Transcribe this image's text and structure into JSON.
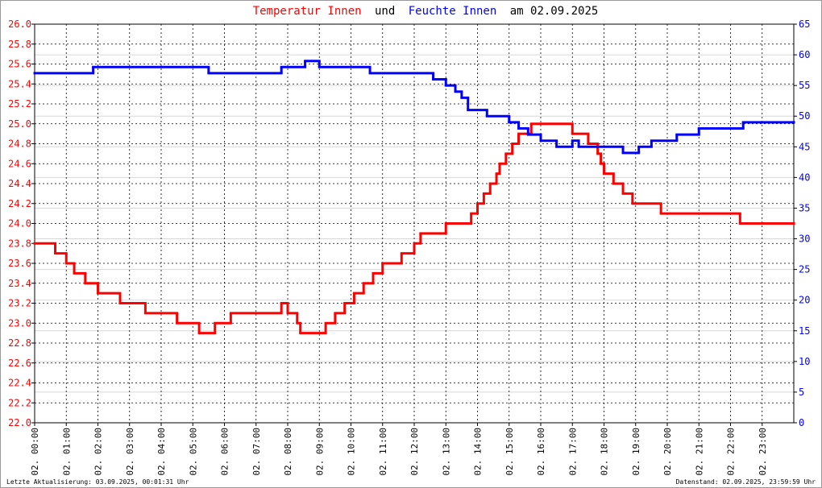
{
  "chart_data": {
    "type": "step",
    "title_parts": [
      "Temperatur Innen",
      "und",
      "Feuchte Innen",
      "am 02.09.2025"
    ],
    "xlim": [
      0,
      24
    ],
    "xticks": [
      {
        "value": 0,
        "label": "02. 00:00"
      },
      {
        "value": 1,
        "label": "02. 01:00"
      },
      {
        "value": 2,
        "label": "02. 02:00"
      },
      {
        "value": 3,
        "label": "02. 03:00"
      },
      {
        "value": 4,
        "label": "02. 04:00"
      },
      {
        "value": 5,
        "label": "02. 05:00"
      },
      {
        "value": 6,
        "label": "02. 06:00"
      },
      {
        "value": 7,
        "label": "02. 07:00"
      },
      {
        "value": 8,
        "label": "02. 08:00"
      },
      {
        "value": 9,
        "label": "02. 09:00"
      },
      {
        "value": 10,
        "label": "02. 10:00"
      },
      {
        "value": 11,
        "label": "02. 11:00"
      },
      {
        "value": 12,
        "label": "02. 12:00"
      },
      {
        "value": 13,
        "label": "02. 13:00"
      },
      {
        "value": 14,
        "label": "02. 14:00"
      },
      {
        "value": 15,
        "label": "02. 15:00"
      },
      {
        "value": 16,
        "label": "02. 16:00"
      },
      {
        "value": 17,
        "label": "02. 17:00"
      },
      {
        "value": 18,
        "label": "02. 18:00"
      },
      {
        "value": 19,
        "label": "02. 19:00"
      },
      {
        "value": 20,
        "label": "02. 20:00"
      },
      {
        "value": 21,
        "label": "02. 21:00"
      },
      {
        "value": 22,
        "label": "02. 22:00"
      },
      {
        "value": 23,
        "label": "02. 23:00"
      }
    ],
    "ylim": [
      22,
      26
    ],
    "yticks": [
      {
        "value": 22,
        "label": "22.0"
      },
      22.2,
      22.4,
      22.6,
      22.8,
      {
        "value": 23,
        "label": "23.0"
      },
      23.2,
      23.4,
      23.6,
      23.8,
      {
        "value": 24,
        "label": "24.0"
      },
      24.2,
      24.4,
      24.6,
      24.8,
      {
        "value": 25,
        "label": "25.0"
      },
      25.2,
      25.4,
      25.6,
      25.8,
      {
        "value": 26,
        "label": "26.0"
      }
    ],
    "y2lim": [
      0,
      65
    ],
    "y2ticks": [
      0,
      5,
      10,
      15,
      20,
      25,
      30,
      35,
      40,
      45,
      50,
      55,
      60,
      65
    ],
    "grid": true,
    "y2grid": true,
    "series": [
      {
        "name": "Temperatur Innen",
        "color": "#ff0000",
        "x": [
          0,
          0.65,
          1.0,
          1.25,
          1.6,
          2.0,
          2.7,
          3.5,
          4.5,
          5.2,
          5.7,
          6.2,
          7.8,
          8.0,
          8.3,
          8.4,
          9.2,
          9.5,
          9.8,
          10.1,
          10.4,
          10.7,
          11.0,
          11.6,
          12.0,
          12.2,
          13.0,
          13.8,
          14.0,
          14.2,
          14.4,
          14.6,
          14.7,
          14.9,
          15.1,
          15.3,
          15.7,
          17.0,
          17.5,
          17.8,
          17.9,
          18.0,
          18.3,
          18.6,
          18.9,
          19.8,
          22.3,
          24
        ],
        "values": [
          23.8,
          23.7,
          23.6,
          23.5,
          23.4,
          23.3,
          23.2,
          23.1,
          23.0,
          22.9,
          23.0,
          23.1,
          23.2,
          23.1,
          23.0,
          22.9,
          23.0,
          23.1,
          23.2,
          23.3,
          23.4,
          23.5,
          23.6,
          23.7,
          23.8,
          23.9,
          24.0,
          24.1,
          24.2,
          24.3,
          24.4,
          24.5,
          24.6,
          24.7,
          24.8,
          24.9,
          25.0,
          24.9,
          24.8,
          24.7,
          24.6,
          24.5,
          24.4,
          24.3,
          24.2,
          24.1,
          24.0,
          24.0
        ]
      },
      {
        "name": "Feuchte Innen",
        "color": "#0000ff",
        "axis": "y2",
        "x": [
          0,
          1.85,
          5.5,
          7.8,
          8.55,
          9.0,
          10.6,
          12.6,
          13.0,
          13.3,
          13.5,
          13.7,
          14.3,
          15.0,
          15.3,
          15.6,
          16.0,
          16.5,
          17.0,
          17.2,
          18.6,
          19.1,
          19.5,
          20.3,
          21.0,
          22.4,
          24
        ],
        "values": [
          57,
          58,
          57,
          58,
          59,
          58,
          57,
          56,
          55,
          54,
          53,
          51,
          50,
          49,
          48,
          47,
          46,
          45,
          46,
          45,
          44,
          45,
          46,
          47,
          48,
          49,
          49
        ]
      }
    ],
    "footer_left": "Letzte Aktualisierung: 03.09.2025, 00:01:31 Uhr",
    "footer_right": "Datenstand: 02.09.2025, 23:59:59 Uhr"
  }
}
